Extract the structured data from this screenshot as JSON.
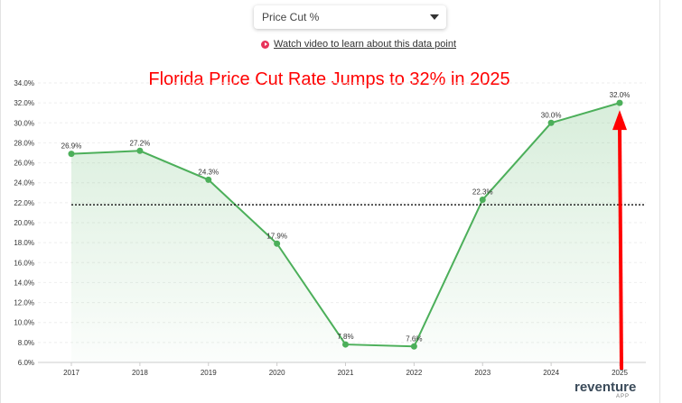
{
  "dropdown": {
    "selected": "Price Cut %"
  },
  "video_link": {
    "label": "Watch video to learn about this data point",
    "icon": "play-icon"
  },
  "colors": {
    "line": "#4caf5a",
    "title": "#ff0000",
    "arrow": "#ff0000",
    "average": "#222222"
  },
  "logo": {
    "name": "reventure",
    "sub": "APP"
  },
  "chart_data": {
    "type": "line",
    "title": "Florida Price Cut Rate Jumps to 32% in 2025",
    "categories": [
      "2017",
      "2018",
      "2019",
      "2020",
      "2021",
      "2022",
      "2023",
      "2024",
      "2025"
    ],
    "values": [
      26.9,
      27.2,
      24.3,
      17.9,
      7.8,
      7.6,
      22.3,
      30.0,
      32.0
    ],
    "data_labels": [
      "26.9%",
      "27.2%",
      "24.3%",
      "17.9%",
      "7.8%",
      "7.6%",
      "22.3%",
      "30.0%",
      "32.0%"
    ],
    "ylim": [
      6,
      34
    ],
    "yticks": [
      "6.0%",
      "8.0%",
      "10.0%",
      "12.0%",
      "14.0%",
      "16.0%",
      "18.0%",
      "20.0%",
      "22.0%",
      "24.0%",
      "26.0%",
      "28.0%",
      "30.0%",
      "32.0%",
      "34.0%"
    ],
    "average_line": 21.8,
    "grid": true,
    "area_fill": true,
    "annotation": "red arrow pointing up to 2025 value"
  }
}
